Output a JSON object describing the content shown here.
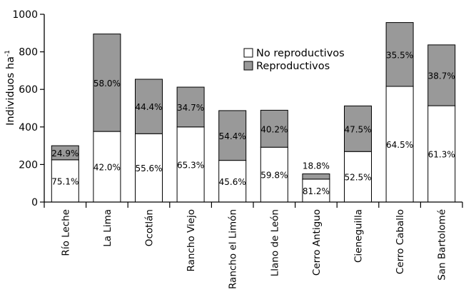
{
  "chart_data": {
    "type": "bar",
    "stacked": true,
    "ylabel": "Individuos ha",
    "ylabel_superscript": "-1",
    "ylim": [
      0,
      1000
    ],
    "yticks": [
      0,
      200,
      400,
      600,
      800,
      1000
    ],
    "legend_position": "top-center",
    "categories": [
      "Río Leche",
      "La Lima",
      "Ocotlán",
      "Rancho Viejo",
      "Rancho el Limón",
      "Llano de León",
      "Cerro Antiguo",
      "Cieneguilla",
      "Cerro Caballo",
      "San Bartolomé"
    ],
    "series": [
      {
        "name": "No reproductivos",
        "color": "#ffffff",
        "values": [
          225,
          376,
          364,
          400,
          222,
          292,
          122,
          269,
          616,
          513
        ],
        "labels": [
          "75.1%",
          "42.0%",
          "55.6%",
          "65.3%",
          "45.6%",
          "59.8%",
          "81.2%",
          "52.5%",
          "64.5%",
          "61.3%"
        ]
      },
      {
        "name": "Reproductivos",
        "color": "#999999",
        "values": [
          75,
          519,
          290,
          212,
          265,
          197,
          28,
          243,
          340,
          324
        ],
        "labels": [
          "24.9%",
          "58.0%",
          "44.4%",
          "34.7%",
          "54.4%",
          "40.2%",
          "18.8%",
          "47.5%",
          "35.5%",
          "38.7%"
        ]
      }
    ]
  }
}
